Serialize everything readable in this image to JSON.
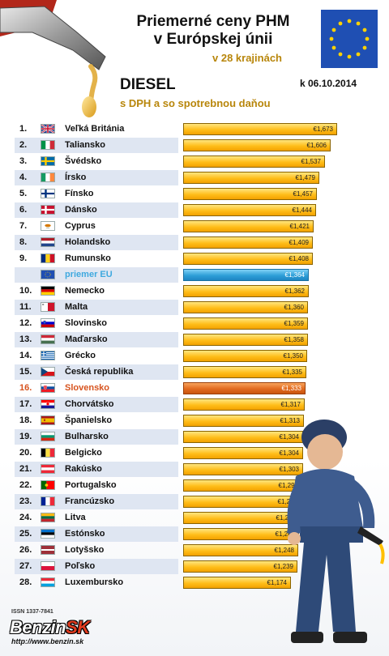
{
  "header": {
    "title_line1": "Priemerné ceny PHM",
    "title_line2": "v Európskej únii",
    "subtitle": "v 28 krajinách",
    "fuel": "DIESEL",
    "tax_note": "s DPH a so spotrebnou daňou",
    "date": "k 06.10.2014"
  },
  "colors": {
    "bar": "#ffbe1a",
    "eu_bar": "#2e9fd8",
    "highlight_bar": "#e26a1f",
    "eu_text": "#3fa9df",
    "highlight_text": "#d7531e",
    "row_band": "#dfe6f2"
  },
  "chart_data": {
    "type": "bar",
    "orientation": "horizontal",
    "title": "Priemerné ceny PHM v Európskej únii",
    "unit": "€",
    "xlim": [
      0,
      1.673
    ],
    "rows": [
      {
        "rank": "1.",
        "country": "Veľká Británia",
        "flag": "gb",
        "value": 1.673,
        "label": "€1,673"
      },
      {
        "rank": "2.",
        "country": "Taliansko",
        "flag": "it",
        "value": 1.606,
        "label": "€1,606"
      },
      {
        "rank": "3.",
        "country": "Švédsko",
        "flag": "se",
        "value": 1.537,
        "label": "€1,537"
      },
      {
        "rank": "4.",
        "country": "Írsko",
        "flag": "ie",
        "value": 1.479,
        "label": "€1,479"
      },
      {
        "rank": "5.",
        "country": "Fínsko",
        "flag": "fi",
        "value": 1.457,
        "label": "€1,457"
      },
      {
        "rank": "6.",
        "country": "Dánsko",
        "flag": "dk",
        "value": 1.444,
        "label": "€1,444"
      },
      {
        "rank": "7.",
        "country": "Cyprus",
        "flag": "cy",
        "value": 1.421,
        "label": "€1,421"
      },
      {
        "rank": "8.",
        "country": "Holandsko",
        "flag": "nl",
        "value": 1.409,
        "label": "€1,409"
      },
      {
        "rank": "9.",
        "country": "Rumunsko",
        "flag": "ro",
        "value": 1.408,
        "label": "€1,408"
      },
      {
        "rank": "",
        "country": "priemer EU",
        "flag": "eu",
        "value": 1.364,
        "label": "€1,364",
        "kind": "eu"
      },
      {
        "rank": "10.",
        "country": "Nemecko",
        "flag": "de",
        "value": 1.362,
        "label": "€1,362"
      },
      {
        "rank": "11.",
        "country": "Malta",
        "flag": "mt",
        "value": 1.36,
        "label": "€1,360"
      },
      {
        "rank": "12.",
        "country": "Slovinsko",
        "flag": "si",
        "value": 1.359,
        "label": "€1,359"
      },
      {
        "rank": "13.",
        "country": "Maďarsko",
        "flag": "hu",
        "value": 1.358,
        "label": "€1,358"
      },
      {
        "rank": "14.",
        "country": "Grécko",
        "flag": "gr",
        "value": 1.35,
        "label": "€1,350"
      },
      {
        "rank": "15.",
        "country": "Česká republika",
        "flag": "cz",
        "value": 1.335,
        "label": "€1,335"
      },
      {
        "rank": "16.",
        "country": "Slovensko",
        "flag": "sk",
        "value": 1.333,
        "label": "€1,333",
        "kind": "highlight"
      },
      {
        "rank": "17.",
        "country": "Chorvátsko",
        "flag": "hr",
        "value": 1.317,
        "label": "€1,317"
      },
      {
        "rank": "18.",
        "country": "Španielsko",
        "flag": "es",
        "value": 1.313,
        "label": "€1,313"
      },
      {
        "rank": "19.",
        "country": "Bulharsko",
        "flag": "bg",
        "value": 1.304,
        "label": "€1,304"
      },
      {
        "rank": "20.",
        "country": "Belgicko",
        "flag": "be",
        "value": 1.304,
        "label": "€1,304"
      },
      {
        "rank": "21.",
        "country": "Rakúsko",
        "flag": "at",
        "value": 1.303,
        "label": "€1,303"
      },
      {
        "rank": "22.",
        "country": "Portugalsko",
        "flag": "pt",
        "value": 1.295,
        "label": "€1,295"
      },
      {
        "rank": "23.",
        "country": "Francúzsko",
        "flag": "fr",
        "value": 1.289,
        "label": "€1,289"
      },
      {
        "rank": "24.",
        "country": "Litva",
        "flag": "lt",
        "value": 1.268,
        "label": "€1,268"
      },
      {
        "rank": "25.",
        "country": "Estónsko",
        "flag": "ee",
        "value": 1.26,
        "label": "€1,260"
      },
      {
        "rank": "26.",
        "country": "Lotyšsko",
        "flag": "lv",
        "value": 1.248,
        "label": "€1,248"
      },
      {
        "rank": "27.",
        "country": "Poľsko",
        "flag": "pl",
        "value": 1.239,
        "label": "€1,239"
      },
      {
        "rank": "28.",
        "country": "Luxembursko",
        "flag": "lu",
        "value": 1.174,
        "label": "€1,174"
      }
    ]
  },
  "footer": {
    "issn": "ISSN 1337-7841",
    "logo_main": "Benzin",
    "logo_suffix": "SK",
    "url": "http://www.benzin.sk"
  }
}
